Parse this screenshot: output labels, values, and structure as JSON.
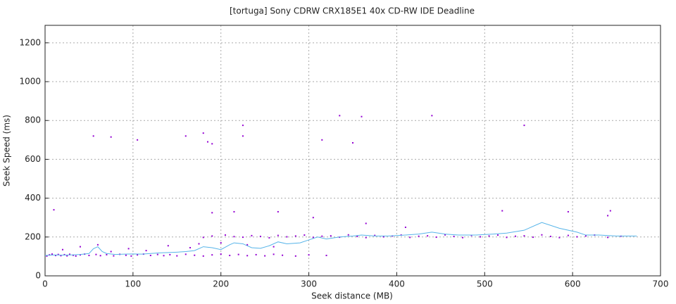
{
  "chart_data": {
    "type": "scatter",
    "title": "[tortuga] Sony CDRW CRX185E1 40x CD-RW IDE Deadline",
    "x_label": "Seek distance (MB)",
    "y_label": "Seek Speed (ms)",
    "xlim": [
      0,
      700
    ],
    "ylim": [
      0,
      1290
    ],
    "xticks": [
      0,
      100,
      200,
      300,
      400,
      500,
      600,
      700
    ],
    "yticks": [
      0,
      200,
      400,
      600,
      800,
      1000,
      1200
    ],
    "grid": true,
    "series": [
      {
        "type": "scatter",
        "color": "#9400d3",
        "x": [
          2,
          5,
          8,
          12,
          15,
          18,
          22,
          25,
          28,
          32,
          35,
          40,
          45,
          50,
          58,
          63,
          70,
          78,
          85,
          92,
          98,
          105,
          112,
          120,
          128,
          135,
          142,
          150,
          160,
          170,
          180,
          190,
          200,
          210,
          220,
          230,
          240,
          250,
          260,
          270,
          285,
          300,
          320,
          180,
          190,
          205,
          215,
          225,
          235,
          245,
          255,
          265,
          275,
          285,
          295,
          305,
          315,
          325,
          335,
          345,
          355,
          365,
          375,
          385,
          395,
          405,
          415,
          425,
          435,
          445,
          455,
          465,
          475,
          485,
          495,
          505,
          515,
          525,
          535,
          545,
          555,
          565,
          575,
          585,
          595,
          605,
          615,
          625,
          640,
          655,
          20,
          40,
          60,
          75,
          95,
          115,
          140,
          165,
          175,
          200,
          230,
          260,
          10,
          55,
          75,
          105,
          160,
          180,
          185,
          190,
          225,
          225,
          215,
          190,
          265,
          315,
          335,
          350,
          360,
          440,
          520,
          545,
          595,
          640,
          643,
          365,
          410,
          305
        ],
        "values": [
          102,
          108,
          112,
          105,
          110,
          104,
          109,
          103,
          111,
          106,
          102,
          108,
          112,
          105,
          110,
          104,
          109,
          103,
          111,
          106,
          102,
          108,
          112,
          105,
          110,
          104,
          109,
          103,
          111,
          106,
          102,
          108,
          112,
          105,
          110,
          104,
          109,
          103,
          111,
          106,
          102,
          108,
          105,
          198,
          205,
          210,
          202,
          199,
          207,
          203,
          196,
          208,
          201,
          205,
          210,
          198,
          204,
          206,
          199,
          211,
          203,
          197,
          208,
          201,
          205,
          210,
          198,
          204,
          206,
          199,
          211,
          203,
          197,
          208,
          201,
          205,
          210,
          198,
          204,
          206,
          199,
          211,
          203,
          197,
          208,
          201,
          205,
          210,
          198,
          204,
          135,
          150,
          160,
          125,
          140,
          130,
          155,
          145,
          165,
          170,
          160,
          150,
          340,
          720,
          715,
          700,
          720,
          735,
          690,
          680,
          775,
          720,
          330,
          325,
          330,
          700,
          825,
          685,
          820,
          825,
          335,
          775,
          330,
          310,
          335,
          270,
          250,
          300
        ]
      },
      {
        "type": "line",
        "color": "#56b4e9",
        "x": [
          0,
          10,
          20,
          30,
          40,
          50,
          55,
          60,
          65,
          70,
          80,
          90,
          100,
          110,
          120,
          130,
          140,
          150,
          160,
          170,
          180,
          190,
          200,
          210,
          215,
          225,
          235,
          245,
          255,
          265,
          275,
          290,
          300,
          310,
          320,
          335,
          350,
          360,
          375,
          390,
          410,
          425,
          440,
          455,
          470,
          490,
          510,
          525,
          545,
          565,
          585,
          605,
          615,
          630,
          650,
          673
        ],
        "values": [
          105,
          108,
          107,
          108,
          110,
          115,
          140,
          150,
          125,
          115,
          110,
          112,
          113,
          112,
          115,
          118,
          120,
          122,
          125,
          130,
          150,
          145,
          135,
          160,
          170,
          165,
          145,
          142,
          155,
          175,
          165,
          170,
          185,
          200,
          190,
          200,
          205,
          210,
          205,
          205,
          210,
          215,
          225,
          215,
          210,
          210,
          215,
          220,
          235,
          275,
          245,
          225,
          210,
          210,
          205,
          205
        ]
      }
    ]
  }
}
